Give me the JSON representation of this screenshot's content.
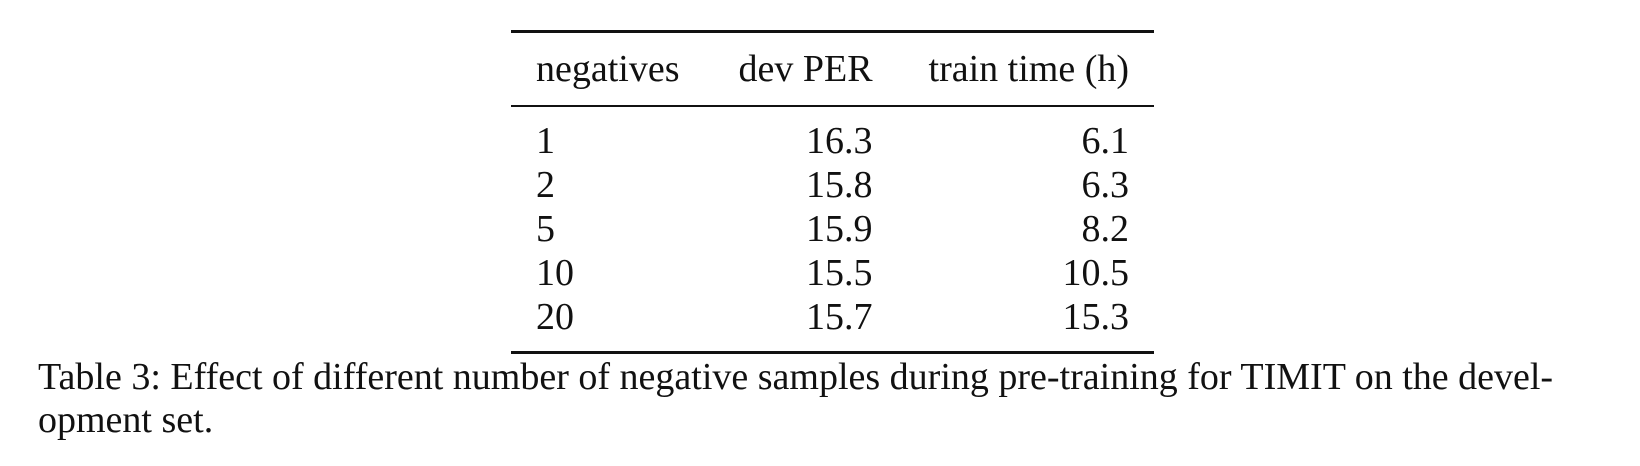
{
  "table": {
    "headers": [
      "negatives",
      "dev PER",
      "train time (h)"
    ],
    "rows": [
      [
        "1",
        "16.3",
        "6.1"
      ],
      [
        "2",
        "15.8",
        "6.3"
      ],
      [
        "5",
        "15.9",
        "8.2"
      ],
      [
        "10",
        "15.5",
        "10.5"
      ],
      [
        "20",
        "15.7",
        "15.3"
      ]
    ]
  },
  "caption": {
    "line1": "Table 3: Effect of different number of negative samples during pre-training for TIMIT on the devel-",
    "line2": "opment set."
  }
}
